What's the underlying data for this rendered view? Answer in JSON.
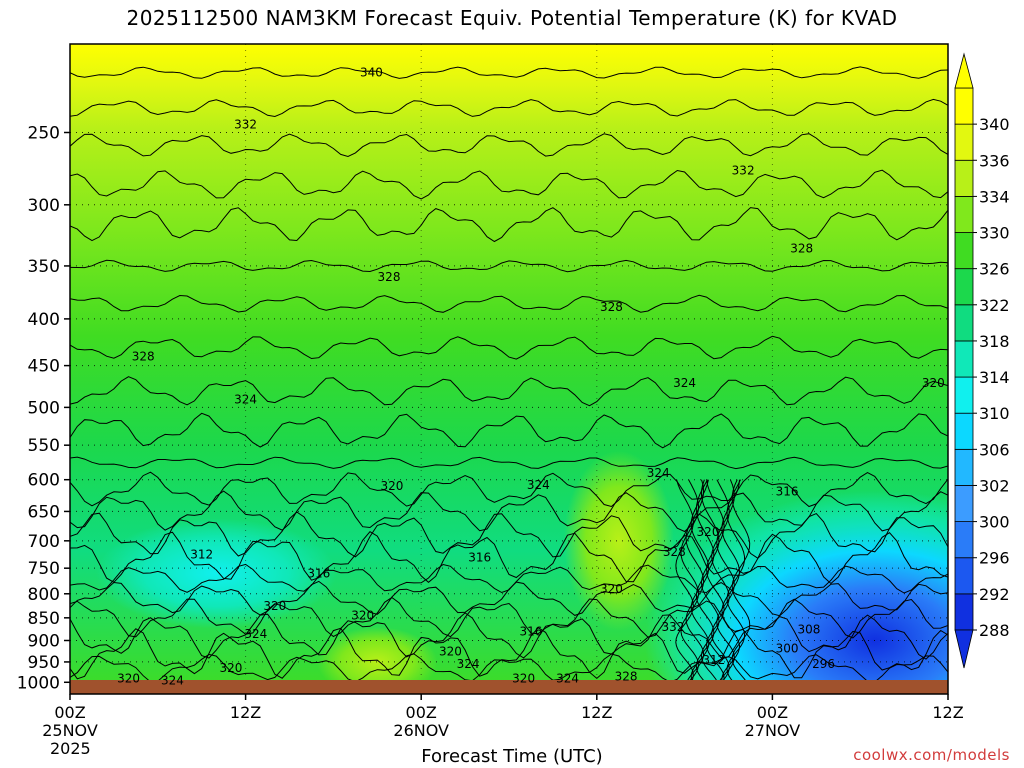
{
  "chart_data": {
    "type": "heatmap",
    "title": "2025112500 NAM3KM Forecast Equiv. Potential Temperature (K) for KVAD",
    "xlabel": "Forecast Time (UTC)",
    "ylabel": "",
    "y_scale": "log-pressure",
    "y_axis": {
      "ticks": [
        250,
        300,
        350,
        400,
        450,
        500,
        550,
        600,
        650,
        700,
        750,
        800,
        850,
        900,
        950,
        1000
      ],
      "range_hPa": [
        1030,
        200
      ]
    },
    "x_axis": {
      "ticks": [
        {
          "hour": 0,
          "line1": "00Z",
          "line2": "25NOV"
        },
        {
          "hour": 12,
          "line1": "12Z",
          "line2": ""
        },
        {
          "hour": 24,
          "line1": "00Z",
          "line2": "26NOV"
        },
        {
          "hour": 36,
          "line1": "12Z",
          "line2": ""
        },
        {
          "hour": 48,
          "line1": "00Z",
          "line2": "27NOV"
        },
        {
          "hour": 60,
          "line1": "12Z",
          "line2": ""
        }
      ],
      "year": "2025",
      "range_hours": [
        0,
        60
      ]
    },
    "colorbar": {
      "levels": [
        288,
        292,
        296,
        300,
        302,
        306,
        310,
        314,
        318,
        322,
        326,
        330,
        334,
        336,
        340
      ],
      "labels": [
        "288",
        "292",
        "296",
        "300",
        "302",
        "306",
        "310",
        "314",
        "318",
        "322",
        "326",
        "330",
        "334",
        "336",
        "340"
      ],
      "colors": [
        "#1030e0",
        "#1c58f0",
        "#2a7cf8",
        "#3c9cff",
        "#22b8ff",
        "#0cd8ff",
        "#10f0ee",
        "#10e8b8",
        "#10dc80",
        "#1cd84c",
        "#40dc22",
        "#80e81c",
        "#b8f018",
        "#e2f810",
        "#ffff00"
      ]
    },
    "contour_labels": [
      {
        "value": "340",
        "hour": 20.6,
        "p": 215
      },
      {
        "value": "332",
        "hour": 12.0,
        "p": 245
      },
      {
        "value": "332",
        "hour": 46.0,
        "p": 275
      },
      {
        "value": "328",
        "hour": 50.0,
        "p": 335
      },
      {
        "value": "328",
        "hour": 21.8,
        "p": 360
      },
      {
        "value": "328",
        "hour": 37.0,
        "p": 388
      },
      {
        "value": "328",
        "hour": 5.0,
        "p": 440
      },
      {
        "value": "324",
        "hour": 12.0,
        "p": 490
      },
      {
        "value": "324",
        "hour": 42.0,
        "p": 470
      },
      {
        "value": "320",
        "hour": 59.0,
        "p": 470
      },
      {
        "value": "324",
        "hour": 40.2,
        "p": 590
      },
      {
        "value": "324",
        "hour": 32.0,
        "p": 608
      },
      {
        "value": "320",
        "hour": 22.0,
        "p": 610
      },
      {
        "value": "316",
        "hour": 49.0,
        "p": 618
      },
      {
        "value": "320",
        "hour": 43.6,
        "p": 685
      },
      {
        "value": "312",
        "hour": 9.0,
        "p": 725
      },
      {
        "value": "328",
        "hour": 41.3,
        "p": 720
      },
      {
        "value": "316",
        "hour": 28.0,
        "p": 730
      },
      {
        "value": "316",
        "hour": 17.0,
        "p": 760
      },
      {
        "value": "320",
        "hour": 37.0,
        "p": 790
      },
      {
        "value": "320",
        "hour": 14.0,
        "p": 825
      },
      {
        "value": "320",
        "hour": 20.0,
        "p": 845
      },
      {
        "value": "324",
        "hour": 12.7,
        "p": 885
      },
      {
        "value": "316",
        "hour": 31.5,
        "p": 880
      },
      {
        "value": "332",
        "hour": 41.2,
        "p": 870
      },
      {
        "value": "308",
        "hour": 50.5,
        "p": 875
      },
      {
        "value": "320",
        "hour": 26.0,
        "p": 925
      },
      {
        "value": "300",
        "hour": 49.0,
        "p": 918
      },
      {
        "value": "312",
        "hour": 44.0,
        "p": 945
      },
      {
        "value": "296",
        "hour": 51.5,
        "p": 955
      },
      {
        "value": "324",
        "hour": 27.2,
        "p": 955
      },
      {
        "value": "320",
        "hour": 11.0,
        "p": 965
      },
      {
        "value": "328",
        "hour": 38.0,
        "p": 985
      },
      {
        "value": "320",
        "hour": 31.0,
        "p": 990
      },
      {
        "value": "324",
        "hour": 34.0,
        "p": 990
      },
      {
        "value": "320",
        "hour": 4.0,
        "p": 990
      },
      {
        "value": "324",
        "hour": 7.0,
        "p": 995
      }
    ]
  },
  "footer": {
    "watermark": "coolwx.com/models"
  }
}
